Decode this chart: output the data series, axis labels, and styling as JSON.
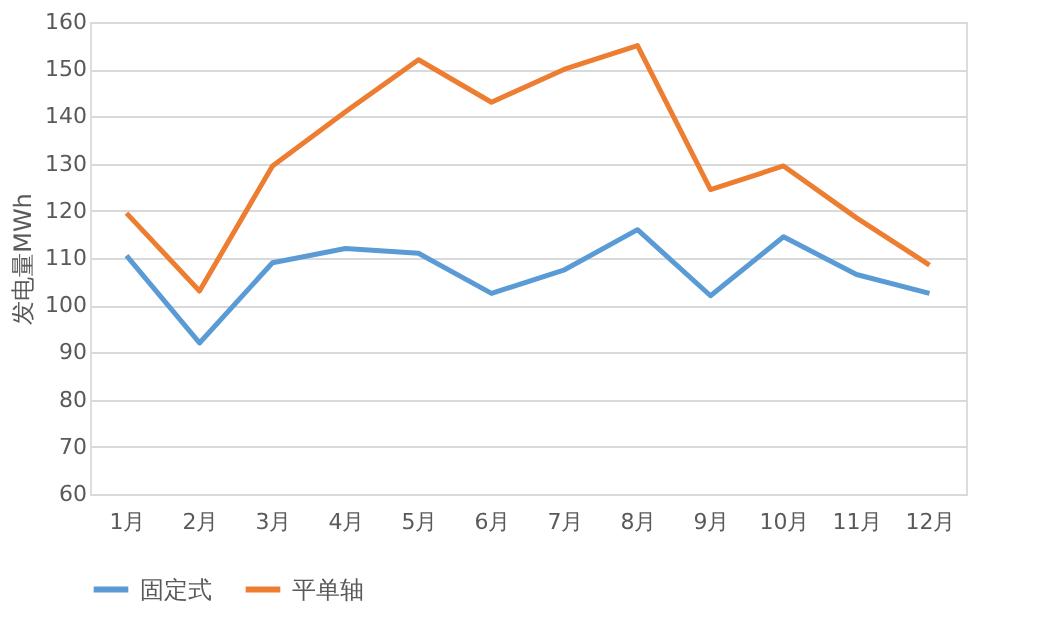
{
  "chart_data": {
    "type": "line",
    "ylabel": "发电量MWh",
    "categories": [
      "1月",
      "2月",
      "3月",
      "4月",
      "5月",
      "6月",
      "7月",
      "8月",
      "9月",
      "10月",
      "11月",
      "12月"
    ],
    "series": [
      {
        "name": "固定式",
        "color": "#5b9bd5",
        "values": [
          110.5,
          92,
          109,
          112,
          111,
          102.5,
          107.5,
          116,
          102,
          114.5,
          106.5,
          102.5
        ]
      },
      {
        "name": "平单轴",
        "color": "#ed7d31",
        "values": [
          119.5,
          103,
          129.5,
          141,
          152,
          143,
          150,
          155,
          124.5,
          129.5,
          118.5,
          108.5
        ]
      }
    ],
    "ylim": [
      60,
      160
    ],
    "yticks": [
      60,
      70,
      80,
      90,
      100,
      110,
      120,
      130,
      140,
      150,
      160
    ],
    "grid": "y",
    "legend": "bottom",
    "marker": "none",
    "line_style": "solid"
  }
}
